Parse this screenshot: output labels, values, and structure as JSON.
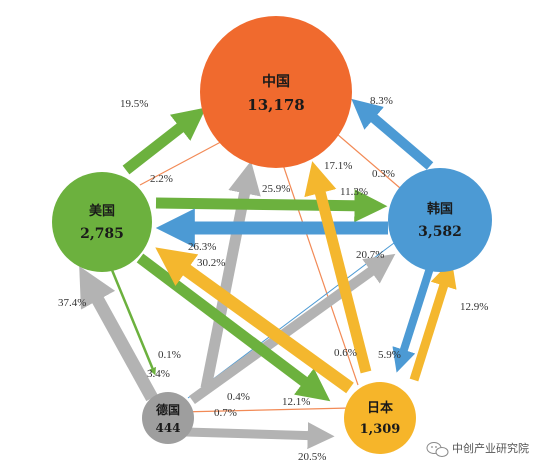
{
  "colors": {
    "china": "#f06a2e",
    "usa": "#6cb13e",
    "korea": "#4c9ad4",
    "japan": "#f6b52a",
    "germany": "#9e9e9e",
    "arrow_green": "#6cb13e",
    "arrow_blue": "#4c9ad4",
    "arrow_yellow": "#f4b72e",
    "arrow_gray": "#b3b3b3",
    "thin_line": "#f28a56"
  },
  "nodes": {
    "china": {
      "name": "中国",
      "value": "13,178"
    },
    "usa": {
      "name": "美国",
      "value": "2,785"
    },
    "korea": {
      "name": "韩国",
      "value": "3,582"
    },
    "japan": {
      "name": "日本",
      "value": "1,309"
    },
    "germany": {
      "name": "德国",
      "value": "444"
    }
  },
  "flows": {
    "usa_to_china": "19.5%",
    "china_to_usa": "2.2%",
    "korea_to_china": "8.3%",
    "china_to_korea": "0.3%",
    "japan_to_china": "17.1%",
    "china_to_japan": "0.6%",
    "germany_to_china": "25.9%",
    "korea_to_japan_upper": "11.3%",
    "usa_korea_left": "26.3%",
    "korea_usa_right": "20.7%",
    "japan_to_usa": "30.2%",
    "germany_to_usa": "37.4%",
    "usa_to_germany_a": "0.1%",
    "usa_to_germany_b": "3.4%",
    "japan_to_korea": "12.9%",
    "korea_to_japan": "5.9%",
    "germany_to_korea": "0.4%",
    "germany_to_japan_a": "0.7%",
    "usa_to_japan": "12.1%",
    "germany_to_japan_b": "20.5%"
  },
  "watermark": {
    "text": "中创产业研究院",
    "icon": "wechat-icon"
  }
}
